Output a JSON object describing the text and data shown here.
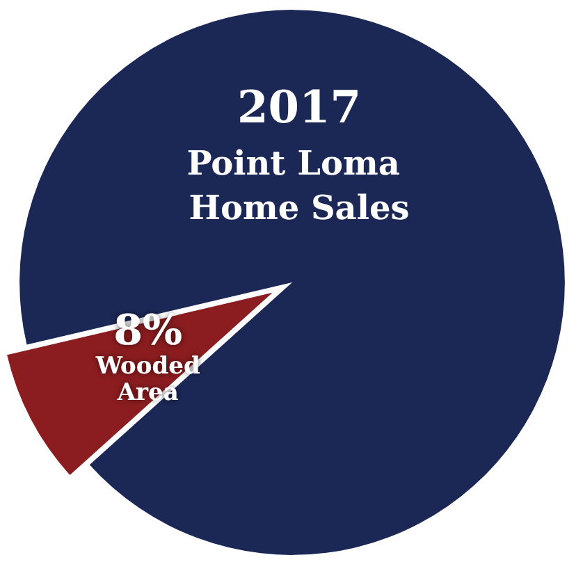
{
  "chart_data": {
    "type": "pie",
    "title": "2017 Point Loma Home Sales",
    "categories": [
      "Wooded Area",
      null
    ],
    "values": [
      8,
      92
    ],
    "colors": [
      "#8b1c1f",
      "#1b2755"
    ],
    "value_labels": [
      "8%",
      null
    ],
    "legend": false
  }
}
